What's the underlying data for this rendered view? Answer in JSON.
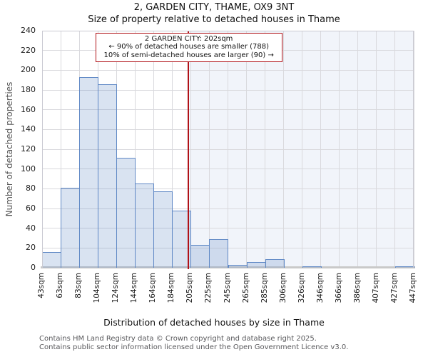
{
  "title": "2, GARDEN CITY, THAME, OX9 3NT",
  "subtitle": "Size of property relative to detached houses in Thame",
  "annotation": {
    "line1": "2 GARDEN CITY: 202sqm",
    "line2": "← 90% of detached houses are smaller (788)",
    "line3": "10% of semi-detached houses are larger (90) →"
  },
  "footer": {
    "line1": "Contains HM Land Registry data © Crown copyright and database right 2025.",
    "line2": "Contains public sector information licensed under the Open Government Licence v3.0."
  },
  "chart_data": {
    "type": "bar",
    "title": "2, GARDEN CITY, THAME, OX9 3NT",
    "subtitle": "Size of property relative to detached houses in Thame",
    "xlabel": "Distribution of detached houses by size in Thame",
    "ylabel": "Number of detached properties",
    "categories": [
      "43sqm",
      "63sqm",
      "83sqm",
      "104sqm",
      "124sqm",
      "144sqm",
      "164sqm",
      "184sqm",
      "205sqm",
      "225sqm",
      "245sqm",
      "265sqm",
      "285sqm",
      "306sqm",
      "326sqm",
      "346sqm",
      "366sqm",
      "386sqm",
      "407sqm",
      "427sqm",
      "447sqm"
    ],
    "bin_edges_sqm": [
      43,
      63,
      83,
      104,
      124,
      144,
      164,
      184,
      205,
      225,
      245,
      265,
      285,
      306,
      326,
      346,
      366,
      386,
      407,
      427,
      447
    ],
    "values": [
      16,
      81,
      193,
      186,
      111,
      85,
      77,
      58,
      23,
      29,
      3,
      6,
      9,
      0,
      1,
      0,
      0,
      0,
      0,
      1
    ],
    "ylim": [
      0,
      240
    ],
    "yticks": [
      0,
      20,
      40,
      60,
      80,
      100,
      120,
      140,
      160,
      180,
      200,
      220,
      240
    ],
    "grid": "on",
    "legend": "none",
    "marker": {
      "sqm": 202,
      "label": "2 GARDEN CITY: 202sqm"
    },
    "colors": {
      "bar_fill": "rgba(98,138,198,0.24)",
      "bar_edge": "#5f88c5",
      "marker": "#b01117",
      "shade": "rgba(98,138,198,0.09)",
      "grid": "#d9d9dd"
    }
  }
}
